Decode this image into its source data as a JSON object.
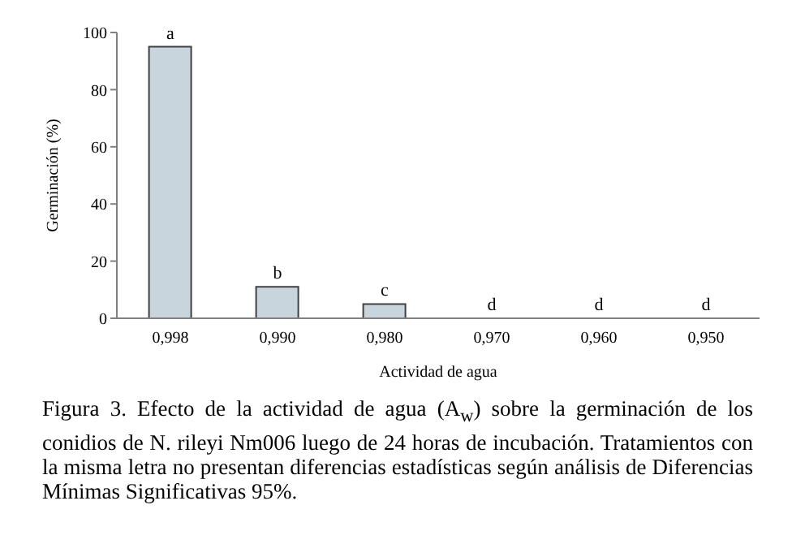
{
  "chart_data": {
    "type": "bar",
    "xlabel": "Actividad de agua",
    "ylabel": "Germinación (%)",
    "categories": [
      "0,998",
      "0,990",
      "0,980",
      "0,970",
      "0,960",
      "0,950"
    ],
    "values": [
      95,
      11,
      5,
      0,
      0,
      0
    ],
    "color": "#c9d5dc",
    "ylim": [
      0,
      100
    ],
    "yticks": [
      0,
      20,
      40,
      60,
      80,
      100
    ],
    "grid": false,
    "legend": false,
    "annotations": [
      {
        "text": "a",
        "x": "0,998",
        "y": 95
      },
      {
        "text": "b",
        "x": "0,990",
        "y": 11
      },
      {
        "text": "c",
        "x": "0,980",
        "y": 5
      },
      {
        "text": "d",
        "x": "0,970",
        "y": 0
      },
      {
        "text": "d",
        "x": "0,960",
        "y": 0
      },
      {
        "text": "d",
        "x": "0,950",
        "y": 0
      },
      "Figura 3. Efecto de la actividad de agua (A$_{w}$) sobre la germinación de los conidios de N. rileyi Nm006 luego de 24 horas de incubación. Tratamientos con la misma letra no presentan diferencias estadísticas según análisis de Diferencias Mínimas Significativas 95%."
    ]
  }
}
